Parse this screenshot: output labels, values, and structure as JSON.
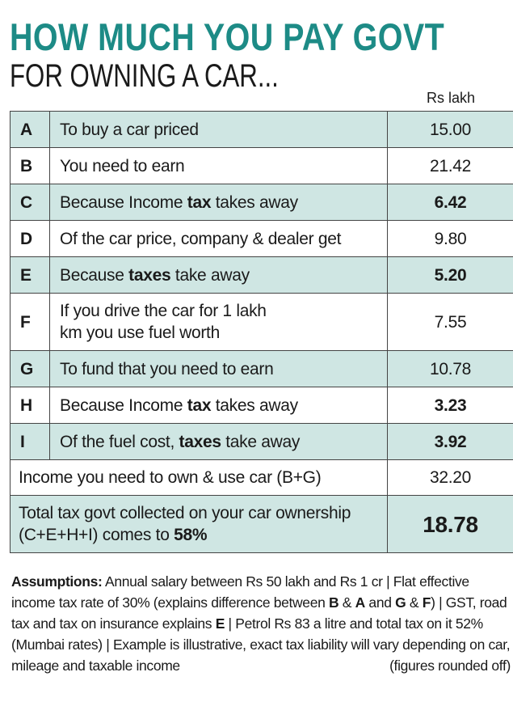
{
  "header": {
    "title": "HOW MUCH YOU PAY GOVT",
    "subtitle": "FOR OWNING A CAR...",
    "unit": "Rs lakh"
  },
  "table": {
    "rows": [
      {
        "label": "A",
        "description": [
          {
            "text": "To buy a car priced",
            "bold": false
          }
        ],
        "value": "15.00",
        "value_bold": false,
        "shaded": true
      },
      {
        "label": "B",
        "description": [
          {
            "text": "You need to earn",
            "bold": false
          }
        ],
        "value": "21.42",
        "value_bold": false,
        "shaded": false
      },
      {
        "label": "C",
        "description": [
          {
            "text": "Because Income ",
            "bold": false
          },
          {
            "text": "tax",
            "bold": true
          },
          {
            "text": " takes away",
            "bold": false
          }
        ],
        "value": "6.42",
        "value_bold": true,
        "shaded": true
      },
      {
        "label": "D",
        "description": [
          {
            "text": "Of the car price, company & dealer get",
            "bold": false
          }
        ],
        "value": "9.80",
        "value_bold": false,
        "shaded": false
      },
      {
        "label": "E",
        "description": [
          {
            "text": "Because ",
            "bold": false
          },
          {
            "text": "taxes",
            "bold": true
          },
          {
            "text": " take away",
            "bold": false
          }
        ],
        "value": "5.20",
        "value_bold": true,
        "shaded": true
      },
      {
        "label": "F",
        "description": [
          {
            "text": "If you drive the car for 1 lakh km you use fuel worth",
            "bold": false
          }
        ],
        "value": "7.55",
        "value_bold": false,
        "shaded": false
      },
      {
        "label": "G",
        "description": [
          {
            "text": "To fund that you need to earn",
            "bold": false
          }
        ],
        "value": "10.78",
        "value_bold": false,
        "shaded": true
      },
      {
        "label": "H",
        "description": [
          {
            "text": "Because Income ",
            "bold": false
          },
          {
            "text": "tax",
            "bold": true
          },
          {
            "text": " takes away",
            "bold": false
          }
        ],
        "value": "3.23",
        "value_bold": true,
        "shaded": false
      },
      {
        "label": "I",
        "description": [
          {
            "text": "Of the fuel cost, ",
            "bold": false
          },
          {
            "text": "taxes",
            "bold": true
          },
          {
            "text": " take away",
            "bold": false
          }
        ],
        "value": "3.92",
        "value_bold": true,
        "shaded": true
      }
    ],
    "totals": [
      {
        "description": [
          {
            "text": "Income you need to own & use car (B+G)",
            "bold": false
          }
        ],
        "value": "32.20",
        "value_bold": false,
        "shaded": false
      },
      {
        "description": [
          {
            "text": "Total tax govt collected on your car ownership (C+E+H+I) comes to ",
            "bold": false
          },
          {
            "text": "58%",
            "bold": true
          }
        ],
        "value": "18.78",
        "value_bold": true,
        "shaded": true
      }
    ]
  },
  "footnote": {
    "segments": [
      {
        "text": "Assumptions:",
        "bold": true
      },
      {
        "text": " Annual salary between Rs 50 lakh and Rs 1 cr | Flat effective income tax rate of 30% (explains difference between ",
        "bold": false
      },
      {
        "text": "B",
        "bold": true
      },
      {
        "text": " & ",
        "bold": false
      },
      {
        "text": "A",
        "bold": true
      },
      {
        "text": " and ",
        "bold": false
      },
      {
        "text": "G",
        "bold": true
      },
      {
        "text": " & ",
        "bold": false
      },
      {
        "text": "F",
        "bold": true
      },
      {
        "text": ") | GST, road tax and tax on insurance explains ",
        "bold": false
      },
      {
        "text": "E",
        "bold": true
      },
      {
        "text": " | Petrol Rs 83 a litre and total tax on it 52% (Mumbai rates) | Example is illustrative, exact tax liability will vary depending on car, mileage and taxable income",
        "bold": false
      }
    ],
    "note": "(figures rounded off)"
  }
}
